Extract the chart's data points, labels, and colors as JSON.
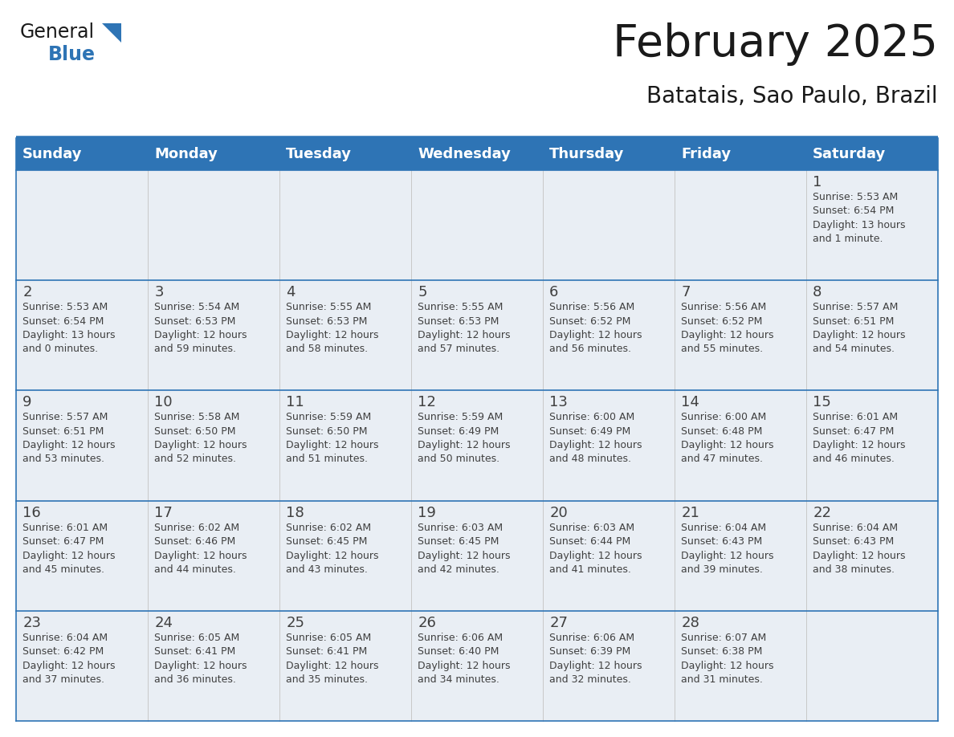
{
  "title": "February 2025",
  "subtitle": "Batatais, Sao Paulo, Brazil",
  "header_bg": "#2E74B5",
  "header_text_color": "#FFFFFF",
  "day_names": [
    "Sunday",
    "Monday",
    "Tuesday",
    "Wednesday",
    "Thursday",
    "Friday",
    "Saturday"
  ],
  "background_color": "#FFFFFF",
  "cell_bg": "#E9EEF4",
  "separator_color": "#2E74B5",
  "text_color": "#404040",
  "day_number_color": "#404040",
  "calendar": [
    [
      null,
      null,
      null,
      null,
      null,
      null,
      {
        "day": 1,
        "sunrise": "5:53 AM",
        "sunset": "6:54 PM",
        "daylight": "13 hours\nand 1 minute."
      }
    ],
    [
      {
        "day": 2,
        "sunrise": "5:53 AM",
        "sunset": "6:54 PM",
        "daylight": "13 hours\nand 0 minutes."
      },
      {
        "day": 3,
        "sunrise": "5:54 AM",
        "sunset": "6:53 PM",
        "daylight": "12 hours\nand 59 minutes."
      },
      {
        "day": 4,
        "sunrise": "5:55 AM",
        "sunset": "6:53 PM",
        "daylight": "12 hours\nand 58 minutes."
      },
      {
        "day": 5,
        "sunrise": "5:55 AM",
        "sunset": "6:53 PM",
        "daylight": "12 hours\nand 57 minutes."
      },
      {
        "day": 6,
        "sunrise": "5:56 AM",
        "sunset": "6:52 PM",
        "daylight": "12 hours\nand 56 minutes."
      },
      {
        "day": 7,
        "sunrise": "5:56 AM",
        "sunset": "6:52 PM",
        "daylight": "12 hours\nand 55 minutes."
      },
      {
        "day": 8,
        "sunrise": "5:57 AM",
        "sunset": "6:51 PM",
        "daylight": "12 hours\nand 54 minutes."
      }
    ],
    [
      {
        "day": 9,
        "sunrise": "5:57 AM",
        "sunset": "6:51 PM",
        "daylight": "12 hours\nand 53 minutes."
      },
      {
        "day": 10,
        "sunrise": "5:58 AM",
        "sunset": "6:50 PM",
        "daylight": "12 hours\nand 52 minutes."
      },
      {
        "day": 11,
        "sunrise": "5:59 AM",
        "sunset": "6:50 PM",
        "daylight": "12 hours\nand 51 minutes."
      },
      {
        "day": 12,
        "sunrise": "5:59 AM",
        "sunset": "6:49 PM",
        "daylight": "12 hours\nand 50 minutes."
      },
      {
        "day": 13,
        "sunrise": "6:00 AM",
        "sunset": "6:49 PM",
        "daylight": "12 hours\nand 48 minutes."
      },
      {
        "day": 14,
        "sunrise": "6:00 AM",
        "sunset": "6:48 PM",
        "daylight": "12 hours\nand 47 minutes."
      },
      {
        "day": 15,
        "sunrise": "6:01 AM",
        "sunset": "6:47 PM",
        "daylight": "12 hours\nand 46 minutes."
      }
    ],
    [
      {
        "day": 16,
        "sunrise": "6:01 AM",
        "sunset": "6:47 PM",
        "daylight": "12 hours\nand 45 minutes."
      },
      {
        "day": 17,
        "sunrise": "6:02 AM",
        "sunset": "6:46 PM",
        "daylight": "12 hours\nand 44 minutes."
      },
      {
        "day": 18,
        "sunrise": "6:02 AM",
        "sunset": "6:45 PM",
        "daylight": "12 hours\nand 43 minutes."
      },
      {
        "day": 19,
        "sunrise": "6:03 AM",
        "sunset": "6:45 PM",
        "daylight": "12 hours\nand 42 minutes."
      },
      {
        "day": 20,
        "sunrise": "6:03 AM",
        "sunset": "6:44 PM",
        "daylight": "12 hours\nand 41 minutes."
      },
      {
        "day": 21,
        "sunrise": "6:04 AM",
        "sunset": "6:43 PM",
        "daylight": "12 hours\nand 39 minutes."
      },
      {
        "day": 22,
        "sunrise": "6:04 AM",
        "sunset": "6:43 PM",
        "daylight": "12 hours\nand 38 minutes."
      }
    ],
    [
      {
        "day": 23,
        "sunrise": "6:04 AM",
        "sunset": "6:42 PM",
        "daylight": "12 hours\nand 37 minutes."
      },
      {
        "day": 24,
        "sunrise": "6:05 AM",
        "sunset": "6:41 PM",
        "daylight": "12 hours\nand 36 minutes."
      },
      {
        "day": 25,
        "sunrise": "6:05 AM",
        "sunset": "6:41 PM",
        "daylight": "12 hours\nand 35 minutes."
      },
      {
        "day": 26,
        "sunrise": "6:06 AM",
        "sunset": "6:40 PM",
        "daylight": "12 hours\nand 34 minutes."
      },
      {
        "day": 27,
        "sunrise": "6:06 AM",
        "sunset": "6:39 PM",
        "daylight": "12 hours\nand 32 minutes."
      },
      {
        "day": 28,
        "sunrise": "6:07 AM",
        "sunset": "6:38 PM",
        "daylight": "12 hours\nand 31 minutes."
      },
      null
    ]
  ],
  "logo_text1": "General",
  "logo_text2": "Blue",
  "logo_color1": "#1a1a1a",
  "logo_color2": "#2E74B5",
  "logo_triangle_color": "#2E74B5",
  "title_fontsize": 40,
  "subtitle_fontsize": 20,
  "header_fontsize": 13,
  "day_num_fontsize": 13,
  "cell_text_fontsize": 9
}
